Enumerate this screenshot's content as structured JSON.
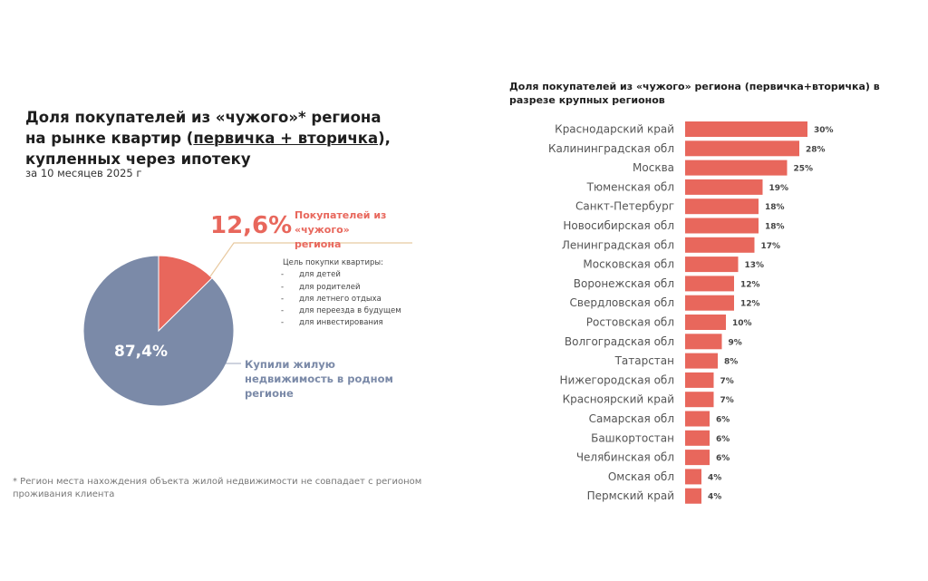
{
  "left": {
    "title_part1": "Доля покупателей из «чужого»* региона на рынке квартир (",
    "title_underlined": "первичка + вторичка",
    "title_part2": "), купленных через ипотеку",
    "subtitle": "за 10 месяцев 2025 г",
    "footnote": "* Регион места нахождения объекта жилой недвижимости не совпадает с регионом проживания клиента",
    "purpose_heading": "Цель покупки квартиры:",
    "purpose_items": [
      "для детей",
      "для родителей",
      "для летнего отдыха",
      "для переезда в будущем",
      "для инвестирования"
    ]
  },
  "colors": {
    "accent": "#e8675c",
    "pie_main": "#7b8aa8",
    "leader": "#e8c9a0"
  },
  "chart_data": [
    {
      "type": "pie",
      "slices": [
        {
          "label_value": "12,6%",
          "value": 12.6,
          "name": "Покупателей из «чужого» региона",
          "color": "#e8675c"
        },
        {
          "label_value": "87,4%",
          "value": 87.4,
          "name": "Купили жилую недвижимость в родном регионе",
          "color": "#7b8aa8"
        }
      ]
    },
    {
      "type": "bar",
      "orientation": "horizontal",
      "title": "Доля покупателей из «чужого» региона (первичка+вторичка) в разрезе крупных регионов",
      "categories": [
        "Краснодарский край",
        "Калининградская обл",
        "Москва",
        "Тюменская обл",
        "Санкт-Петербург",
        "Новосибирская обл",
        "Ленинградская обл",
        "Московская обл",
        "Воронежская обл",
        "Свердловская обл",
        "Ростовская обл",
        "Волгоградская обл",
        "Татарстан",
        "Нижегородская обл",
        "Красноярский край",
        "Самарская обл",
        "Башкортостан",
        "Челябинская обл",
        "Омская обл",
        "Пермский край"
      ],
      "values": [
        30,
        28,
        25,
        19,
        18,
        18,
        17,
        13,
        12,
        12,
        10,
        9,
        8,
        7,
        7,
        6,
        6,
        6,
        4,
        4
      ],
      "data_labels": [
        "30%",
        "28%",
        "25%",
        "19%",
        "18%",
        "18%",
        "17%",
        "13%",
        "12%",
        "12%",
        "10%",
        "9%",
        "8%",
        "7%",
        "7%",
        "6%",
        "6%",
        "6%",
        "4%",
        "4%"
      ],
      "color": "#e8675c"
    }
  ]
}
